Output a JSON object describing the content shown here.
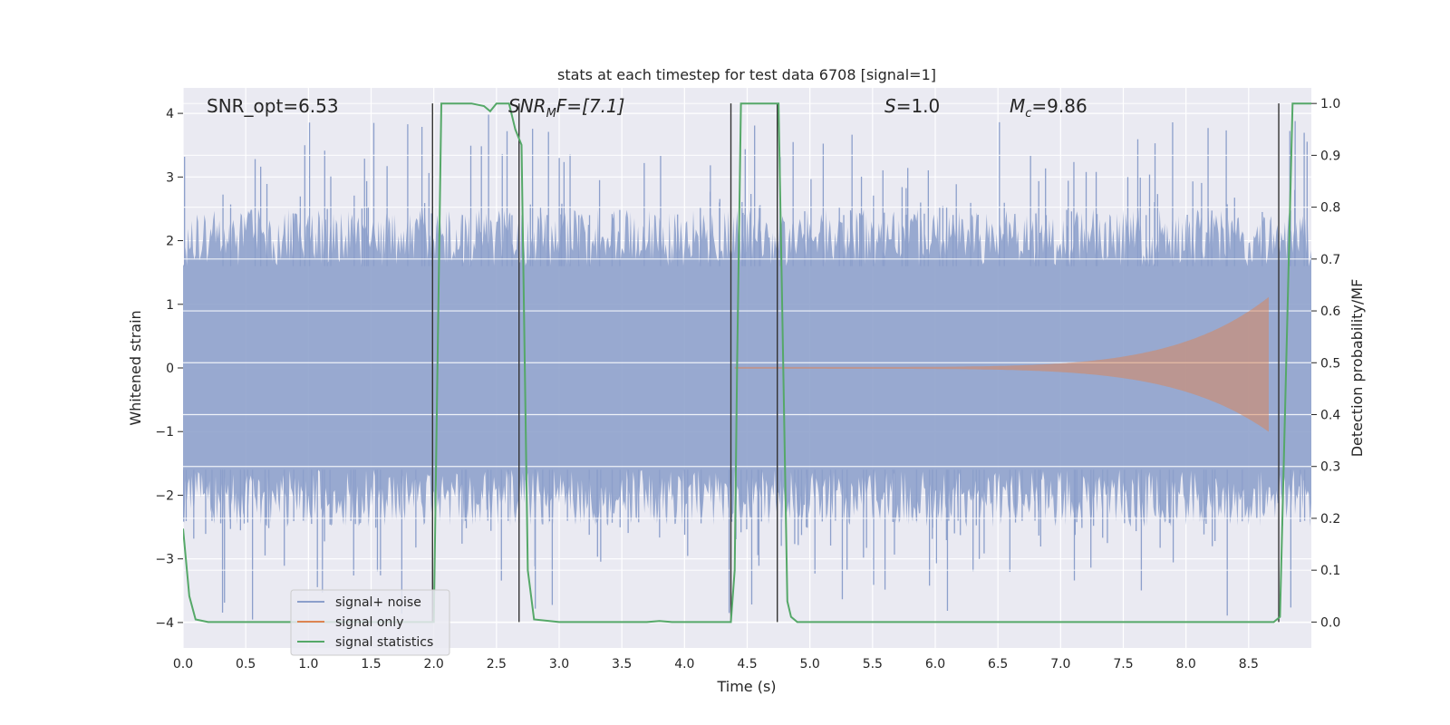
{
  "chart_data": {
    "type": "line",
    "title": "stats at each timestep for test data 6708 [signal=1]",
    "xlabel": "Time (s)",
    "ylabel_left": "Whitened strain",
    "ylabel_right": "Detection probability/MF",
    "xlim": [
      0.0,
      9.0
    ],
    "ylim_left": [
      -4.4,
      4.4
    ],
    "ylim_right": [
      -0.05,
      1.03
    ],
    "x_ticks": [
      0.0,
      0.5,
      1.0,
      1.5,
      2.0,
      2.5,
      3.0,
      3.5,
      4.0,
      4.5,
      5.0,
      5.5,
      6.0,
      6.5,
      7.0,
      7.5,
      8.0,
      8.5
    ],
    "x_tick_labels": [
      "0.0",
      "0.5",
      "1.0",
      "1.5",
      "2.0",
      "2.5",
      "3.0",
      "3.5",
      "4.0",
      "4.5",
      "5.0",
      "5.5",
      "6.0",
      "6.5",
      "7.0",
      "7.5",
      "8.0",
      "8.5"
    ],
    "y_left_ticks": [
      4,
      3,
      2,
      1,
      0,
      -1,
      -2,
      -3,
      -4
    ],
    "y_left_tick_labels": [
      "4",
      "3",
      "2",
      "1",
      "0",
      "−1",
      "−2",
      "−3",
      "−4"
    ],
    "y_right_ticks": [
      1.0,
      0.9,
      0.8,
      0.7,
      0.6,
      0.5,
      0.4,
      0.3,
      0.2,
      0.1,
      0.0
    ],
    "y_right_tick_labels": [
      "1.0",
      "0.9",
      "0.8",
      "0.7",
      "0.6",
      "0.5",
      "0.4",
      "0.3",
      "0.2",
      "0.1",
      "0.0"
    ],
    "grid": true,
    "legend_position": "lower-left",
    "annotations": {
      "snr_opt": "SNR_opt=6.53",
      "snr_mf_var": "SNR",
      "snr_mf_sub": "M",
      "snr_mf_rest": "F=[7.1]",
      "s_var": "S",
      "s_rest": "=1.0",
      "mc_var": "M",
      "mc_sub": "c",
      "mc_rest": "=9.86"
    },
    "series": [
      {
        "name": "signal+ noise",
        "color": "#8c9fcb",
        "kind": "noise",
        "amplitude_core": 1.6,
        "amplitude_peak": 4.0
      },
      {
        "name": "signal only",
        "color": "#dd8452",
        "kind": "chirp",
        "start": 4.4,
        "end": 8.66,
        "peak": 1.1
      },
      {
        "name": "signal statistics",
        "color": "#55a868",
        "kind": "line",
        "axis": "right",
        "x": [
          0.0,
          0.05,
          0.1,
          0.2,
          0.5,
          1.0,
          1.5,
          1.9,
          1.95,
          2.0,
          2.03,
          2.06,
          2.1,
          2.3,
          2.4,
          2.45,
          2.5,
          2.6,
          2.65,
          2.7,
          2.75,
          2.8,
          3.0,
          3.5,
          3.7,
          3.8,
          3.9,
          4.0,
          4.3,
          4.37,
          4.4,
          4.42,
          4.45,
          4.5,
          4.7,
          4.75,
          4.78,
          4.82,
          4.85,
          4.9,
          5.5,
          6.0,
          7.0,
          8.0,
          8.5,
          8.7,
          8.75,
          8.8,
          8.85,
          9.0
        ],
        "y": [
          0.18,
          0.05,
          0.005,
          0.0,
          0.0,
          0.0,
          0.0,
          0.0,
          0.0,
          0.0,
          0.5,
          1.0,
          1.0,
          1.0,
          0.995,
          0.985,
          1.0,
          1.0,
          0.95,
          0.92,
          0.1,
          0.005,
          0.0,
          0.0,
          0.0,
          0.002,
          0.0,
          0.0,
          0.0,
          0.0,
          0.1,
          0.5,
          1.0,
          1.0,
          1.0,
          1.0,
          0.6,
          0.04,
          0.01,
          0.0,
          0.0,
          0.0,
          0.0,
          0.0,
          0.0,
          0.0,
          0.01,
          0.5,
          1.0,
          1.0
        ]
      }
    ],
    "vertical_markers": [
      1.99,
      2.68,
      4.37,
      4.74,
      8.74
    ]
  }
}
